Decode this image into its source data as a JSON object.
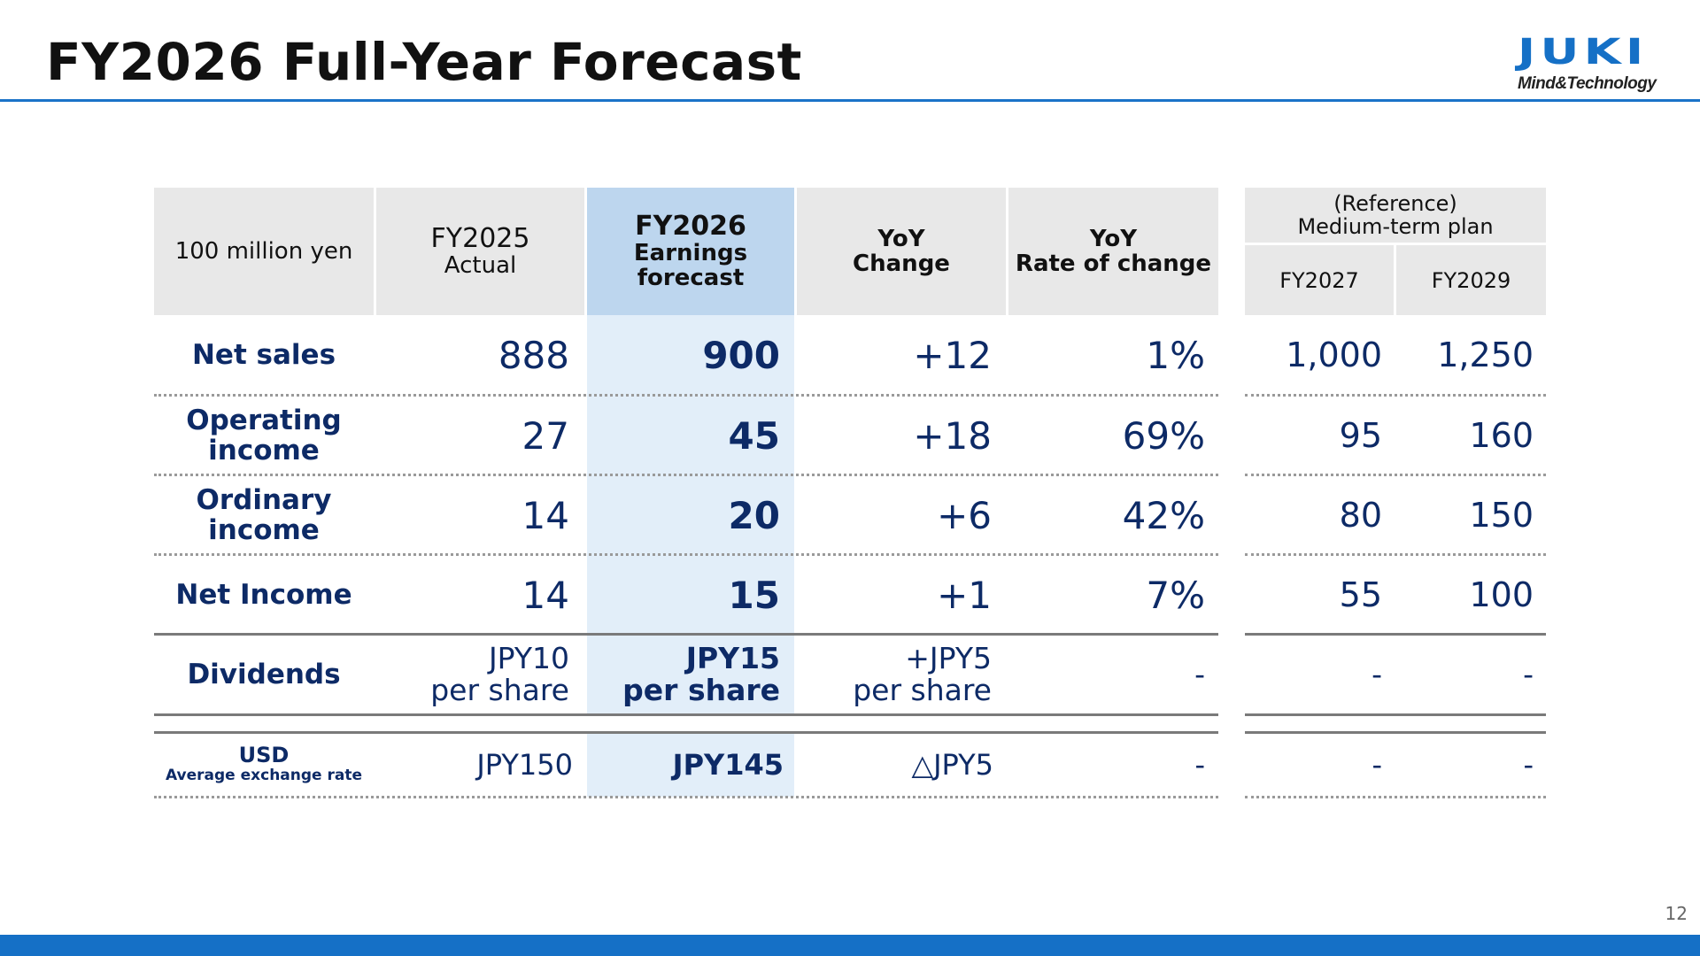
{
  "title": "FY2026 Full-Year Forecast",
  "logo": {
    "word": "JUKI",
    "tagline": "Mind&Technology"
  },
  "slide_number": "12",
  "table": {
    "unit_label": "100 million yen",
    "headers": {
      "fy2025": [
        "FY2025",
        "Actual"
      ],
      "fy2026": [
        "FY2026",
        "Earnings",
        "forecast"
      ],
      "yoy_change": [
        "YoY",
        "Change"
      ],
      "yoy_rate": [
        "YoY",
        "Rate of change"
      ],
      "reference": [
        "(Reference)",
        "Medium-term plan"
      ],
      "fy2027": "FY2027",
      "fy2029": "FY2029"
    },
    "rows": [
      {
        "label": [
          "Net sales"
        ],
        "fy2025": "888",
        "fy2026": "900",
        "change": "+12",
        "rate": "1%",
        "fy2027": "1,000",
        "fy2029": "1,250"
      },
      {
        "label": [
          "Operating",
          "income"
        ],
        "fy2025": "27",
        "fy2026": "45",
        "change": "+18",
        "rate": "69%",
        "fy2027": "95",
        "fy2029": "160"
      },
      {
        "label": [
          "Ordinary",
          "income"
        ],
        "fy2025": "14",
        "fy2026": "20",
        "change": "+6",
        "rate": "42%",
        "fy2027": "80",
        "fy2029": "150"
      },
      {
        "label": [
          "Net Income"
        ],
        "fy2025": "14",
        "fy2026": "15",
        "change": "+1",
        "rate": "7%",
        "fy2027": "55",
        "fy2029": "100"
      },
      {
        "label": [
          "Dividends"
        ],
        "fy2025": [
          "JPY10",
          "per share"
        ],
        "fy2026": [
          "JPY15",
          "per share"
        ],
        "change": [
          "+JPY5",
          "per share"
        ],
        "rate": "-",
        "fy2027": "-",
        "fy2029": "-"
      }
    ],
    "usd_row": {
      "label": "USD",
      "sublabel": "Average exchange rate",
      "fy2025": "JPY150",
      "fy2026": "JPY145",
      "change": "△JPY5",
      "rate": "-",
      "fy2027": "-",
      "fy2029": "-"
    }
  }
}
